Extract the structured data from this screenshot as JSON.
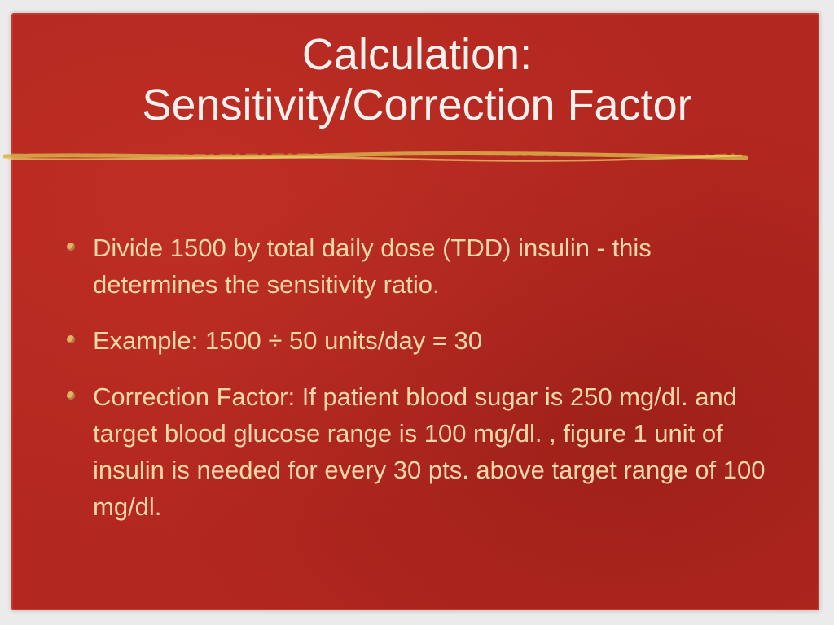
{
  "slide": {
    "title_lines": [
      "Calculation:",
      "Sensitivity/Correction  Factor"
    ],
    "bullets": [
      "Divide 1500 by total daily dose (TDD) insulin - this determines the sensitivity ratio.",
      "Example:  1500  ÷ 50 units/day = 30",
      "Correction Factor: If patient blood sugar is 250 mg/dl. and target blood glucose range is 100 mg/dl. , figure 1 unit of insulin is needed for every 30 pts. above target range of 100 mg/dl."
    ],
    "colors": {
      "background": "#b2271f",
      "title": "#f7f1ee",
      "body_text": "#f6d7a8",
      "bullet": "#e0b26c",
      "rule": "#e7c35a"
    }
  }
}
